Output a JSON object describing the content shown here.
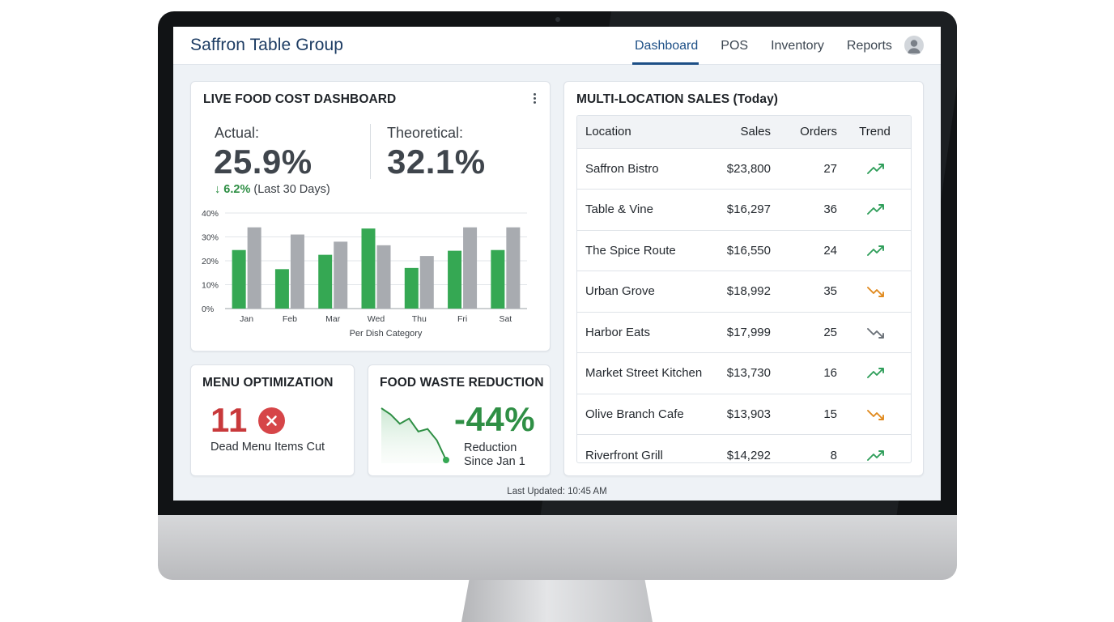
{
  "app": {
    "brand": "Saffron Table Group",
    "nav": [
      {
        "label": "Dashboard",
        "active": true
      },
      {
        "label": "POS",
        "active": false
      },
      {
        "label": "Inventory",
        "active": false
      },
      {
        "label": "Reports",
        "active": false
      }
    ],
    "avatar_icon": "user-avatar-icon"
  },
  "food_cost": {
    "title": "LIVE FOOD COST DASHBOARD",
    "actual_label": "Actual:",
    "actual_value": "25.9%",
    "theoretical_label": "Theoretical:",
    "theoretical_value": "32.1%",
    "change_arrow": "↓",
    "change_value": "6.2%",
    "change_period": "(Last 30 Days)",
    "menu_icon": "kebab-menu-icon"
  },
  "chart_data": {
    "type": "bar",
    "categories": [
      "Jan",
      "Feb",
      "Mar",
      "Wed",
      "Thu",
      "Fri",
      "Sat"
    ],
    "series": [
      {
        "name": "",
        "color": "#35a853",
        "values": [
          24.5,
          16.5,
          22.5,
          33.5,
          17,
          24.2,
          24.5
        ]
      },
      {
        "name": "",
        "color": "#a8abb0",
        "values": [
          34,
          31,
          28,
          26.5,
          22,
          34,
          34
        ]
      }
    ],
    "yticks": [
      "0%",
      "10%",
      "20%",
      "30%",
      "40%"
    ],
    "ylim": [
      0,
      40
    ],
    "xlabel": "Per Dish Category",
    "ylabel": "",
    "grid": true
  },
  "menu_opt": {
    "title": "MENU OPTIMIZATION",
    "value": "11",
    "caption": "Dead Menu Items Cut",
    "icon": "x-circle-icon",
    "accent": "#c8393b"
  },
  "waste": {
    "title": "FOOD WASTE REDUCTION",
    "value": "-44%",
    "caption_line1": "Reduction",
    "caption_line2": "Since Jan 1",
    "accent": "#2f8f45",
    "spark": [
      0,
      0.12,
      0.3,
      0.2,
      0.45,
      0.4,
      0.62,
      1
    ]
  },
  "sales": {
    "title": "MULTI-LOCATION SALES (Today)",
    "columns": [
      "Location",
      "Sales",
      "Orders",
      "Trend"
    ],
    "rows": [
      {
        "location": "Saffron Bistro",
        "sales": "$23,800",
        "orders": "27",
        "trend": "up"
      },
      {
        "location": "Table & Vine",
        "sales": "$16,297",
        "orders": "36",
        "trend": "up"
      },
      {
        "location": "The Spice Route",
        "sales": "$16,550",
        "orders": "24",
        "trend": "up"
      },
      {
        "location": "Urban Grove",
        "sales": "$18,992",
        "orders": "35",
        "trend": "down"
      },
      {
        "location": "Harbor Eats",
        "sales": "$17,999",
        "orders": "25",
        "trend": "down-neutral"
      },
      {
        "location": "Market Street Kitchen",
        "sales": "$13,730",
        "orders": "16",
        "trend": "up"
      },
      {
        "location": "Olive Branch Cafe",
        "sales": "$13,903",
        "orders": "15",
        "trend": "down"
      },
      {
        "location": "Riverfront Grill",
        "sales": "$14,292",
        "orders": "8",
        "trend": "up"
      }
    ],
    "trend_colors": {
      "up": "#2f9e5a",
      "down": "#e08a1e",
      "down-neutral": "#6b7178"
    }
  },
  "footer": {
    "last_updated": "Last Updated: 10:45 AM"
  }
}
